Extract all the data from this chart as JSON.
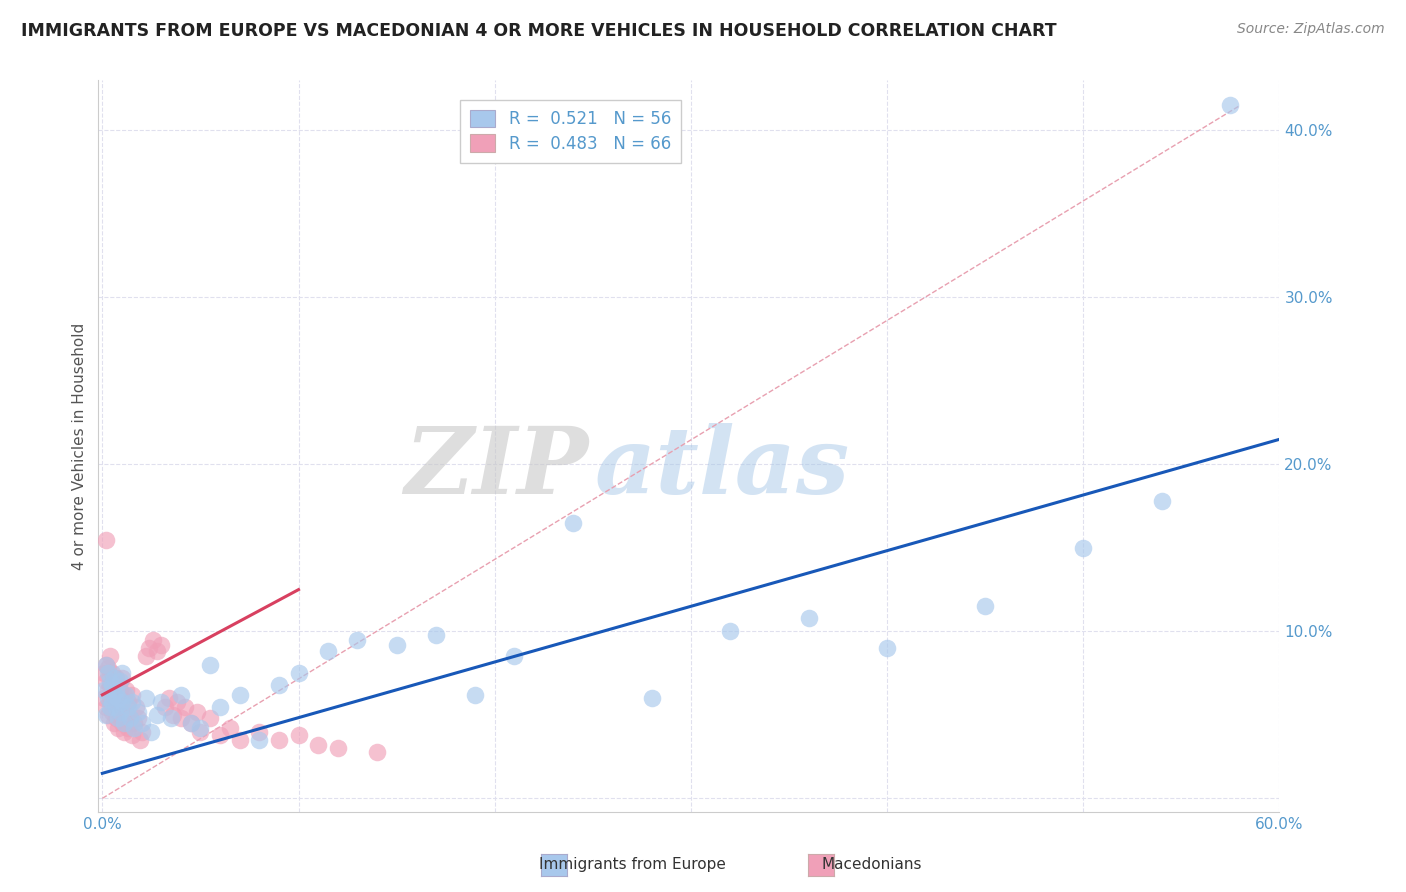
{
  "title": "IMMIGRANTS FROM EUROPE VS MACEDONIAN 4 OR MORE VEHICLES IN HOUSEHOLD CORRELATION CHART",
  "source": "Source: ZipAtlas.com",
  "ylabel": "4 or more Vehicles in Household",
  "legend_blue_label": "Immigrants from Europe",
  "legend_pink_label": "Macedonians",
  "R_blue": 0.521,
  "N_blue": 56,
  "R_pink": 0.483,
  "N_pink": 66,
  "xlim": [
    -0.002,
    0.6
  ],
  "ylim": [
    -0.008,
    0.43
  ],
  "yticks": [
    0.0,
    0.1,
    0.2,
    0.3,
    0.4
  ],
  "ytick_labels": [
    "",
    "10.0%",
    "20.0%",
    "30.0%",
    "40.0%"
  ],
  "watermark_zip": "ZIP",
  "watermark_atlas": "atlas",
  "blue_color": "#A8C8EC",
  "pink_color": "#F0A0B8",
  "trend_blue": "#1858B8",
  "trend_pink": "#D84060",
  "trend_ref_color": "#E8A0B0",
  "blue_scatter_x": [
    0.001,
    0.002,
    0.002,
    0.003,
    0.003,
    0.004,
    0.004,
    0.005,
    0.005,
    0.006,
    0.006,
    0.007,
    0.007,
    0.008,
    0.008,
    0.009,
    0.009,
    0.01,
    0.01,
    0.011,
    0.012,
    0.013,
    0.014,
    0.015,
    0.016,
    0.018,
    0.02,
    0.022,
    0.025,
    0.028,
    0.03,
    0.035,
    0.04,
    0.045,
    0.05,
    0.055,
    0.06,
    0.07,
    0.08,
    0.09,
    0.1,
    0.115,
    0.13,
    0.15,
    0.17,
    0.19,
    0.21,
    0.24,
    0.28,
    0.32,
    0.36,
    0.4,
    0.45,
    0.5,
    0.54,
    0.575
  ],
  "blue_scatter_y": [
    0.065,
    0.05,
    0.08,
    0.06,
    0.075,
    0.055,
    0.07,
    0.058,
    0.068,
    0.062,
    0.072,
    0.055,
    0.065,
    0.048,
    0.06,
    0.07,
    0.052,
    0.058,
    0.075,
    0.045,
    0.062,
    0.055,
    0.048,
    0.058,
    0.042,
    0.052,
    0.045,
    0.06,
    0.04,
    0.05,
    0.058,
    0.048,
    0.062,
    0.045,
    0.042,
    0.08,
    0.055,
    0.062,
    0.035,
    0.068,
    0.075,
    0.088,
    0.095,
    0.092,
    0.098,
    0.062,
    0.085,
    0.165,
    0.06,
    0.1,
    0.108,
    0.09,
    0.115,
    0.15,
    0.178,
    0.415
  ],
  "pink_scatter_x": [
    0.001,
    0.001,
    0.002,
    0.002,
    0.002,
    0.003,
    0.003,
    0.003,
    0.004,
    0.004,
    0.004,
    0.005,
    0.005,
    0.005,
    0.006,
    0.006,
    0.006,
    0.007,
    0.007,
    0.007,
    0.008,
    0.008,
    0.008,
    0.009,
    0.009,
    0.01,
    0.01,
    0.01,
    0.011,
    0.011,
    0.012,
    0.012,
    0.013,
    0.013,
    0.014,
    0.015,
    0.015,
    0.016,
    0.017,
    0.018,
    0.019,
    0.02,
    0.022,
    0.024,
    0.026,
    0.028,
    0.03,
    0.032,
    0.034,
    0.036,
    0.038,
    0.04,
    0.042,
    0.045,
    0.048,
    0.05,
    0.055,
    0.06,
    0.065,
    0.07,
    0.08,
    0.09,
    0.1,
    0.11,
    0.12,
    0.14
  ],
  "pink_scatter_y": [
    0.06,
    0.075,
    0.055,
    0.07,
    0.08,
    0.05,
    0.065,
    0.078,
    0.058,
    0.068,
    0.085,
    0.052,
    0.062,
    0.075,
    0.045,
    0.058,
    0.07,
    0.048,
    0.06,
    0.072,
    0.042,
    0.055,
    0.068,
    0.05,
    0.065,
    0.045,
    0.058,
    0.072,
    0.04,
    0.062,
    0.05,
    0.065,
    0.042,
    0.058,
    0.048,
    0.038,
    0.062,
    0.045,
    0.055,
    0.048,
    0.035,
    0.04,
    0.085,
    0.09,
    0.095,
    0.088,
    0.092,
    0.055,
    0.06,
    0.05,
    0.058,
    0.048,
    0.055,
    0.045,
    0.052,
    0.04,
    0.048,
    0.038,
    0.042,
    0.035,
    0.04,
    0.035,
    0.038,
    0.032,
    0.03,
    0.028
  ],
  "pink_outlier_x": [
    0.002
  ],
  "pink_outlier_y": [
    0.155
  ],
  "blue_trend_x0": 0.0,
  "blue_trend_y0": 0.015,
  "blue_trend_x1": 0.6,
  "blue_trend_y1": 0.215,
  "pink_trend_x0": 0.0,
  "pink_trend_y0": 0.062,
  "pink_trend_x1": 0.1,
  "pink_trend_y1": 0.125,
  "ref_line_x0": 0.0,
  "ref_line_y0": 0.0,
  "ref_line_x1": 0.58,
  "ref_line_y1": 0.415
}
